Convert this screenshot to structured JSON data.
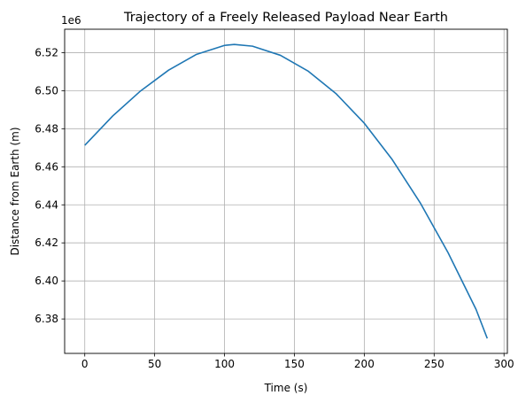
{
  "chart_data": {
    "type": "line",
    "title": "Trajectory of a Freely Released Payload Near Earth",
    "xlabel": "Time (s)",
    "ylabel": "Distance from Earth (m)",
    "y_offset_label": "1e6",
    "xlim": [
      -14.4,
      302.4
    ],
    "ylim": [
      6.3619,
      6.5323
    ],
    "x_ticks": [
      0,
      50,
      100,
      150,
      200,
      250,
      300
    ],
    "x_tick_labels": [
      "0",
      "50",
      "100",
      "150",
      "200",
      "250",
      "300"
    ],
    "y_ticks": [
      6.38,
      6.4,
      6.42,
      6.44,
      6.46,
      6.48,
      6.5,
      6.52
    ],
    "y_tick_labels": [
      "6.38",
      "6.40",
      "6.42",
      "6.44",
      "6.46",
      "6.48",
      "6.50",
      "6.52"
    ],
    "y_multiplier": 1000000,
    "grid": true,
    "series": [
      {
        "color": "#1f77b4",
        "x": [
          0,
          20,
          40,
          60,
          80,
          100,
          107,
          120,
          140,
          160,
          180,
          200,
          220,
          240,
          260,
          280,
          288
        ],
        "y": [
          6.4713,
          6.4867,
          6.4999,
          6.5108,
          6.5191,
          6.5238,
          6.5243,
          6.5234,
          6.5186,
          6.5102,
          6.4983,
          6.4829,
          6.4638,
          6.4411,
          6.4148,
          6.385,
          6.3698
        ]
      }
    ]
  }
}
